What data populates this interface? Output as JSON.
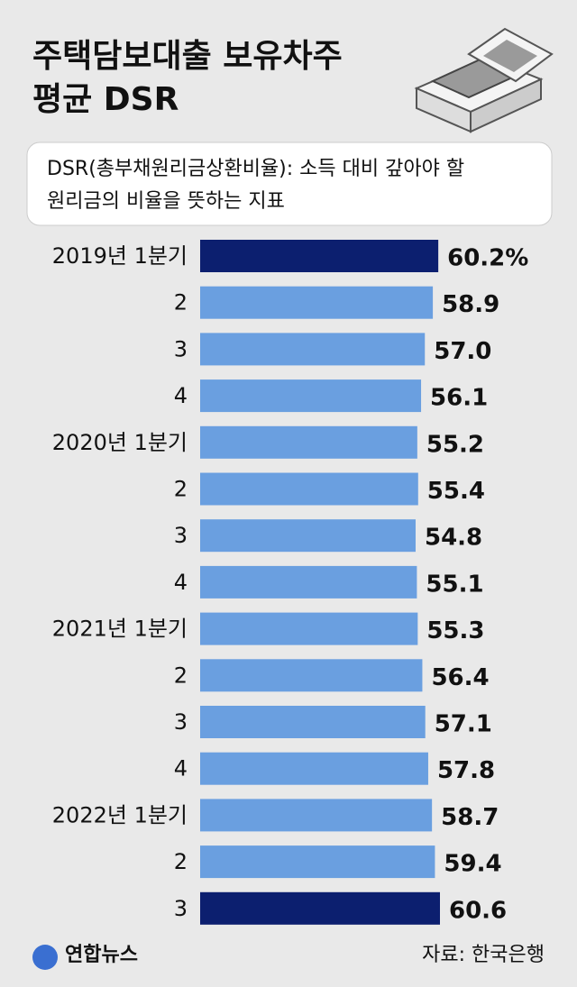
{
  "chart_data": {
    "type": "bar",
    "orientation": "horizontal",
    "title": [
      "주택담보대출 보유차주",
      "평균 DSR"
    ],
    "subtitle": [
      "DSR(총부채원리금상환비율): 소득 대비 갚아야 할",
      "원리금의 비율을 뜻하는 지표"
    ],
    "categories": [
      "2019년 1분기",
      "2",
      "3",
      "4",
      "2020년 1분기",
      "2",
      "3",
      "4",
      "2021년 1분기",
      "2",
      "3",
      "4",
      "2022년 1분기",
      "2",
      "3"
    ],
    "values": [
      60.2,
      58.9,
      57.0,
      56.1,
      55.2,
      55.4,
      54.8,
      55.1,
      55.3,
      56.4,
      57.1,
      57.8,
      58.7,
      59.4,
      60.6
    ],
    "value_labels": [
      "60.2%",
      "58.9",
      "57.0",
      "56.1",
      "55.2",
      "55.4",
      "54.8",
      "55.1",
      "55.3",
      "56.4",
      "57.1",
      "57.8",
      "58.7",
      "59.4",
      "60.6"
    ],
    "colors": [
      "#0c1f6f",
      "#6a9fe0",
      "#6a9fe0",
      "#6a9fe0",
      "#6a9fe0",
      "#6a9fe0",
      "#6a9fe0",
      "#6a9fe0",
      "#6a9fe0",
      "#6a9fe0",
      "#6a9fe0",
      "#6a9fe0",
      "#6a9fe0",
      "#6a9fe0",
      "#0c1f6f"
    ],
    "logo": "연합뉴스",
    "source": "자료: 한국은행"
  }
}
